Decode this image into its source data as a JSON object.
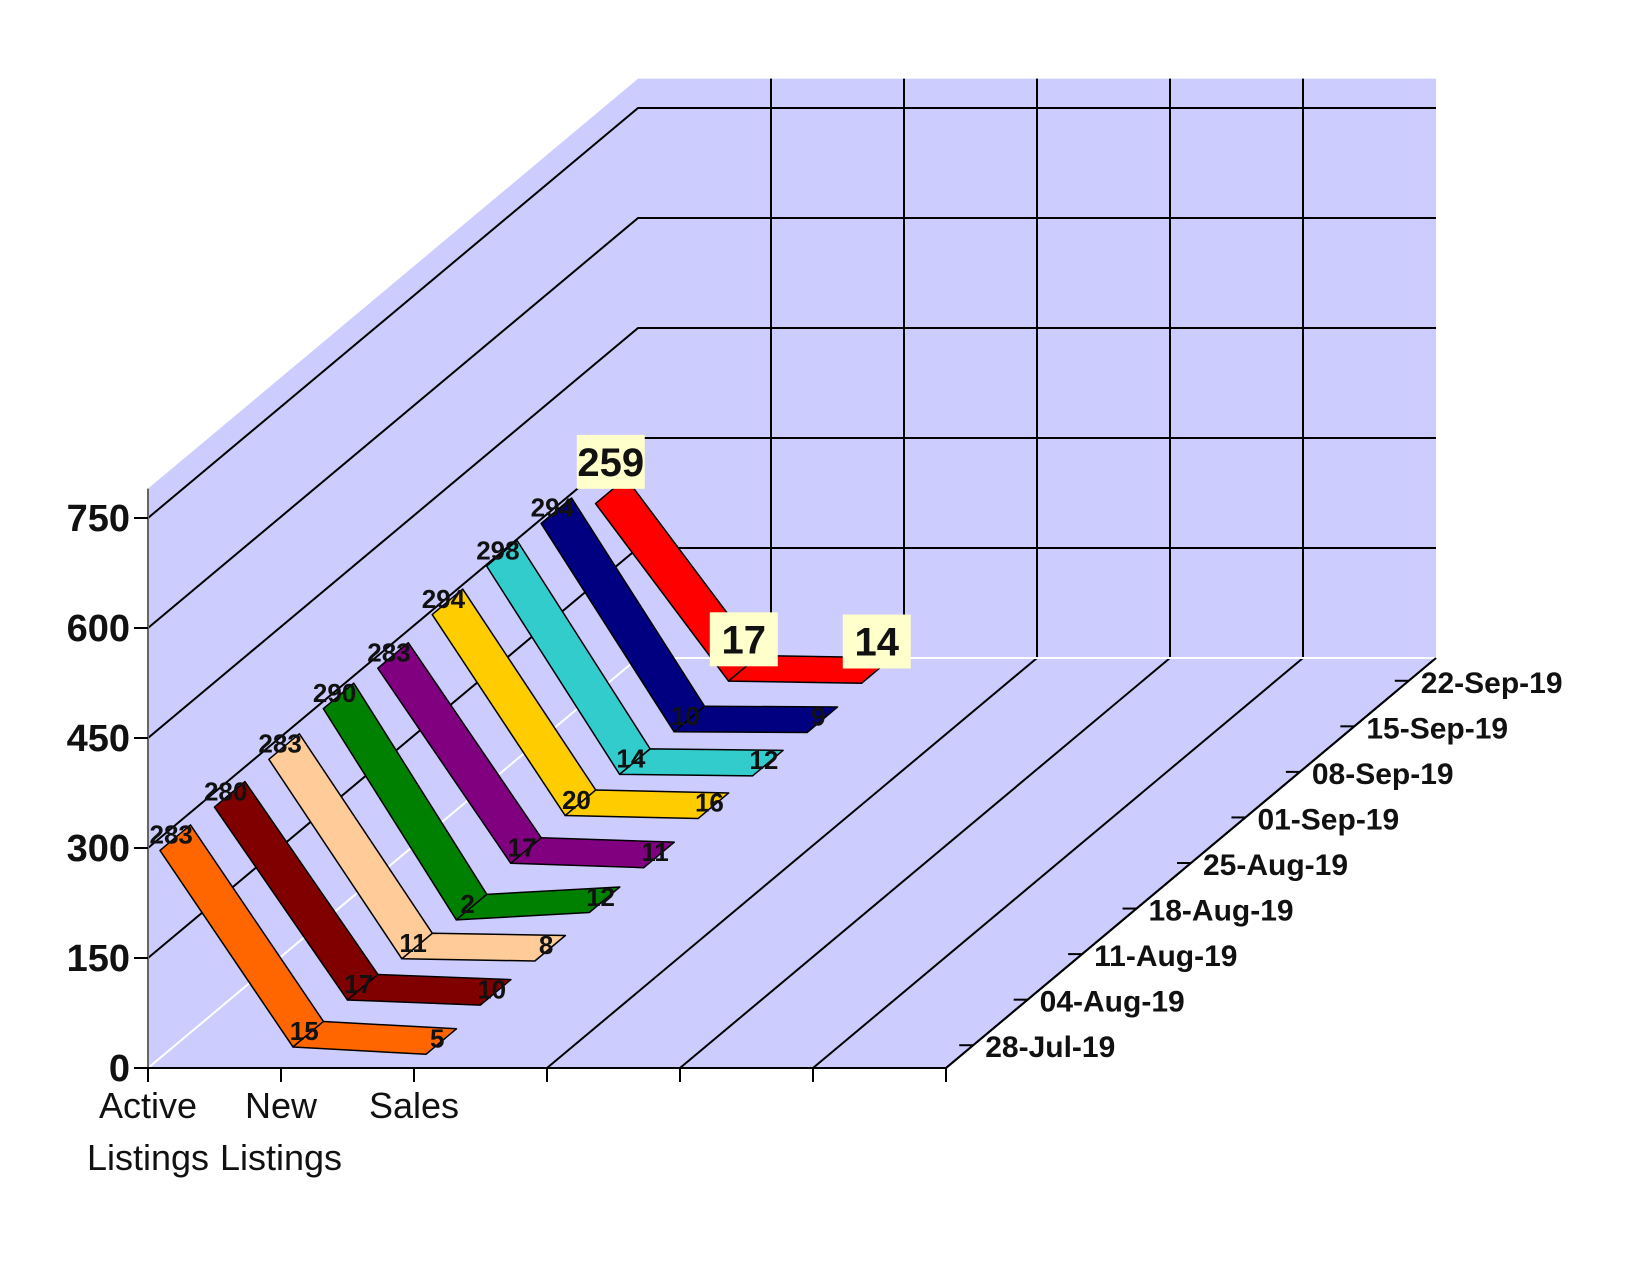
{
  "chart_data": {
    "type": "line",
    "style": "3d-stacked-series",
    "categories": [
      "Active Listings",
      "New Listings",
      "Sales"
    ],
    "category_lines": [
      [
        "Active",
        "Listings"
      ],
      [
        "New",
        "Listings"
      ],
      [
        "Sales"
      ]
    ],
    "ylim": [
      0,
      750
    ],
    "yticks": [
      0,
      150,
      300,
      450,
      600,
      750
    ],
    "grid": true,
    "wall_color": "#ccccff",
    "series": [
      {
        "name": "28-Jul-19",
        "values": [
          283,
          15,
          5
        ],
        "color": "#ff6600"
      },
      {
        "name": "04-Aug-19",
        "values": [
          280,
          17,
          10
        ],
        "color": "#800000"
      },
      {
        "name": "11-Aug-19",
        "values": [
          283,
          11,
          8
        ],
        "color": "#ffcc99"
      },
      {
        "name": "18-Aug-19",
        "values": [
          290,
          2,
          12
        ],
        "color": "#008000"
      },
      {
        "name": "25-Aug-19",
        "values": [
          283,
          17,
          11
        ],
        "color": "#800080"
      },
      {
        "name": "01-Sep-19",
        "values": [
          294,
          20,
          16
        ],
        "color": "#ffcc00"
      },
      {
        "name": "08-Sep-19",
        "values": [
          298,
          14,
          12
        ],
        "color": "#33cccc"
      },
      {
        "name": "15-Sep-19",
        "values": [
          294,
          10,
          9
        ],
        "color": "#000080"
      },
      {
        "name": "22-Sep-19",
        "values": [
          259,
          17,
          14
        ],
        "color": "#ff0000",
        "highlight": true
      }
    ]
  }
}
